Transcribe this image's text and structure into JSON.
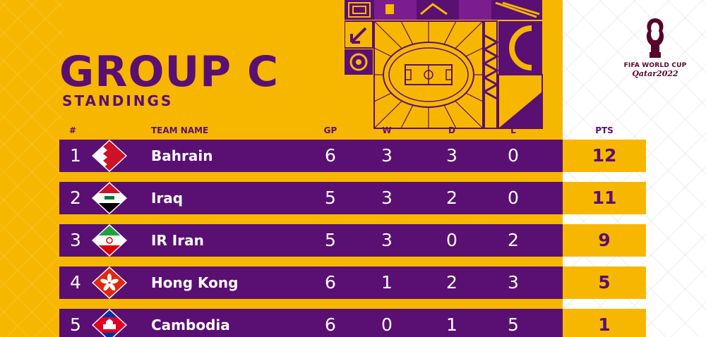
{
  "header": {
    "title": "GROUP C",
    "subtitle": "STANDINGS"
  },
  "logo": {
    "line1": "FIFA WORLD CUP",
    "line2": "Qatar2022"
  },
  "colors": {
    "background": "#f7b700",
    "purple": "#5a0f73",
    "maroon": "#56042c"
  },
  "columns": {
    "pos": "#",
    "team": "TEAM NAME",
    "gp": "GP",
    "w": "W",
    "d": "D",
    "l": "L",
    "pts": "PTS"
  },
  "standings": [
    {
      "pos": "1",
      "team": "Bahrain",
      "flag": "bahrain-flag-icon",
      "gp": "6",
      "w": "3",
      "d": "3",
      "l": "0",
      "pts": "12"
    },
    {
      "pos": "2",
      "team": "Iraq",
      "flag": "iraq-flag-icon",
      "gp": "5",
      "w": "3",
      "d": "2",
      "l": "0",
      "pts": "11"
    },
    {
      "pos": "3",
      "team": "IR Iran",
      "flag": "iran-flag-icon",
      "gp": "5",
      "w": "3",
      "d": "0",
      "l": "2",
      "pts": "9"
    },
    {
      "pos": "4",
      "team": "Hong Kong",
      "flag": "hong-kong-flag-icon",
      "gp": "6",
      "w": "1",
      "d": "2",
      "l": "3",
      "pts": "5"
    },
    {
      "pos": "5",
      "team": "Cambodia",
      "flag": "cambodia-flag-icon",
      "gp": "6",
      "w": "0",
      "d": "1",
      "l": "5",
      "pts": "1"
    }
  ]
}
